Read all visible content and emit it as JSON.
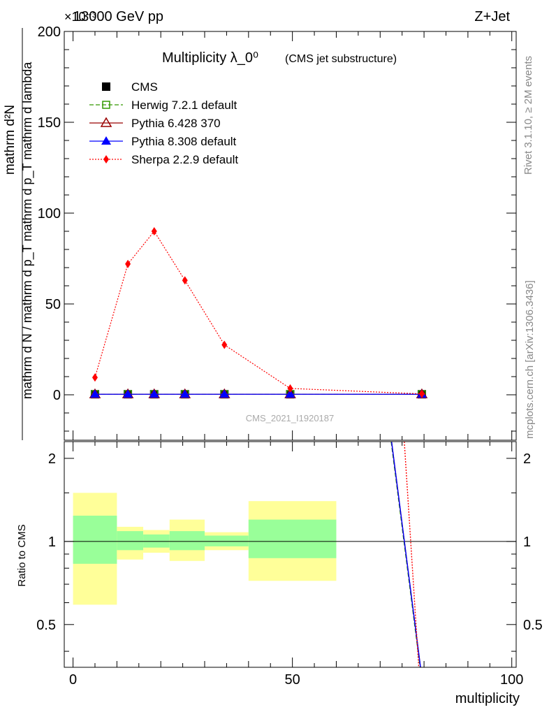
{
  "header": {
    "energy_label": "13000 GeV pp",
    "process_label": "Z+Jet",
    "scale_label": "×10⁻³"
  },
  "side_labels": {
    "rivet": "Rivet 3.1.10, ≥ 2M events",
    "mcplots": "mcplots.cern.ch [arXiv:1306.3436]"
  },
  "chart_data": {
    "type": "line",
    "title": "Multiplicity λ_0⁰",
    "subtitle": "(CMS jet substructure)",
    "analysis_tag": "CMS_2021_I1920187",
    "ylabel_main": "1 / (mathrm d N / mathrm d p_T) · mathrm d²N / (mathrm d p_T mathrm d lambda)",
    "ylabel_main_numerator": "mathrm d²N",
    "ylabel_main_denominator": "mathrm d N / mathrm d p_T mathrm d p_T mathrm d lambda",
    "ylabel_ratio": "Ratio to CMS",
    "xlabel": "multiplicity",
    "xlim": [
      -2,
      101
    ],
    "ylim_main": [
      -25,
      200
    ],
    "ylim_ratio": [
      0.35,
      2.3
    ],
    "x_ticks": [
      0,
      50,
      100
    ],
    "y_ticks_main": [
      0,
      50,
      100,
      150,
      200
    ],
    "y_ticks_ratio": [
      0.5,
      1,
      2
    ],
    "y_scale_ratio": "log",
    "series": [
      {
        "name": "CMS",
        "marker": "square-filled",
        "color": "#000000",
        "line": "none",
        "x": [
          5,
          12.5,
          18.5,
          25.5,
          34.5,
          49.5,
          79.5
        ],
        "y": [
          0.3,
          0.3,
          0.3,
          0.3,
          0.3,
          0.3,
          0.3
        ]
      },
      {
        "name": "Herwig 7.2.1 default",
        "marker": "square-open",
        "color": "#339900",
        "line": "dashed",
        "x": [
          5,
          12.5,
          18.5,
          25.5,
          34.5,
          49.5,
          79.5
        ],
        "y": [
          0.3,
          0.3,
          0.3,
          0.3,
          0.3,
          0.3,
          0.3
        ]
      },
      {
        "name": "Pythia 6.428 370",
        "marker": "triangle-open",
        "color": "#990000",
        "line": "solid",
        "x": [
          5,
          12.5,
          18.5,
          25.5,
          34.5,
          49.5,
          79.5
        ],
        "y": [
          0.3,
          0.3,
          0.3,
          0.3,
          0.3,
          0.3,
          0.3
        ]
      },
      {
        "name": "Pythia 8.308 default",
        "marker": "triangle-filled",
        "color": "#0000ff",
        "line": "solid",
        "x": [
          5,
          12.5,
          18.5,
          25.5,
          34.5,
          49.5,
          79.5
        ],
        "y": [
          0.3,
          0.3,
          0.3,
          0.3,
          0.3,
          0.3,
          0.3
        ]
      },
      {
        "name": "Sherpa 2.2.9 default",
        "marker": "diamond-filled",
        "color": "#ff0000",
        "line": "dotted",
        "x": [
          5,
          12.5,
          18.5,
          25.5,
          34.5,
          49.5,
          79.5
        ],
        "y": [
          9.5,
          72,
          90,
          63,
          27.5,
          3.5,
          0.5
        ]
      }
    ],
    "ratio_bands": [
      {
        "x0": 0,
        "x1": 10,
        "inner": [
          0.83,
          1.24
        ],
        "outer": [
          0.59,
          1.5
        ]
      },
      {
        "x0": 10,
        "x1": 16,
        "inner": [
          0.93,
          1.09
        ],
        "outer": [
          0.86,
          1.13
        ]
      },
      {
        "x0": 16,
        "x1": 22,
        "inner": [
          0.95,
          1.06
        ],
        "outer": [
          0.91,
          1.1
        ]
      },
      {
        "x0": 22,
        "x1": 30,
        "inner": [
          0.93,
          1.09
        ],
        "outer": [
          0.85,
          1.2
        ]
      },
      {
        "x0": 30,
        "x1": 40,
        "inner": [
          0.96,
          1.05
        ],
        "outer": [
          0.93,
          1.08
        ]
      },
      {
        "x0": 40,
        "x1": 60,
        "inner": [
          0.87,
          1.2
        ],
        "outer": [
          0.72,
          1.4
        ]
      }
    ],
    "ratio_lines": [
      {
        "name": "Herwig 7.2.1 default",
        "color": "#339900",
        "line": "dashed",
        "points": [
          [
            72.5,
            2.3
          ],
          [
            79.1,
            0.35
          ]
        ]
      },
      {
        "name": "Pythia 6.428 370",
        "color": "#990000",
        "line": "solid",
        "points": [
          [
            72.6,
            2.3
          ],
          [
            79.2,
            0.35
          ]
        ]
      },
      {
        "name": "Pythia 8.308 default",
        "color": "#0000ff",
        "line": "solid",
        "points": [
          [
            72.6,
            2.3
          ],
          [
            79.2,
            0.35
          ]
        ]
      },
      {
        "name": "Sherpa 2.2.9 default",
        "color": "#ff0000",
        "line": "dotted",
        "points": [
          [
            75.5,
            2.3
          ],
          [
            78.8,
            0.35
          ]
        ]
      }
    ]
  }
}
